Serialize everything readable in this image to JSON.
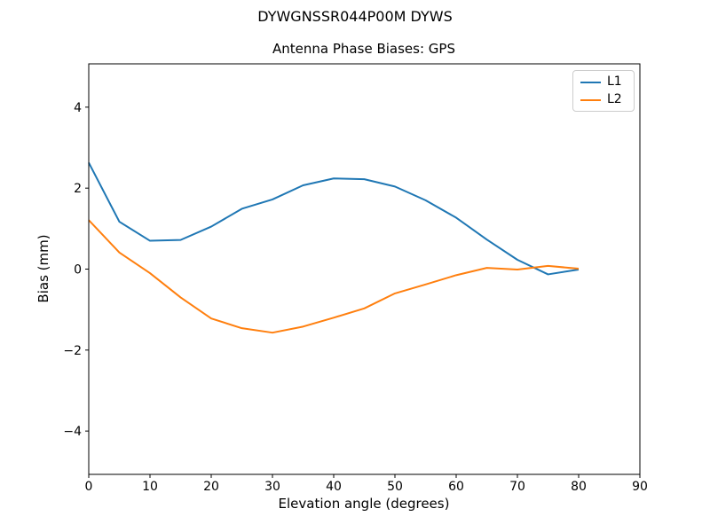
{
  "figure": {
    "suptitle": "DYWGNSSR044P00M DYWS"
  },
  "chart_data": {
    "type": "line",
    "title": "Antenna Phase Biases: GPS",
    "xlabel": "Elevation angle (degrees)",
    "ylabel": "Bias (mm)",
    "xlim": [
      0,
      90
    ],
    "ylim": [
      -5.07,
      5.07
    ],
    "xticks": [
      0,
      10,
      20,
      30,
      40,
      50,
      60,
      70,
      80,
      90
    ],
    "yticks": [
      -4,
      -2,
      0,
      2,
      4
    ],
    "grid": false,
    "legend_position": "upper right",
    "x": [
      0,
      5,
      10,
      15,
      20,
      25,
      30,
      35,
      40,
      45,
      50,
      55,
      60,
      65,
      70,
      75,
      80
    ],
    "series": [
      {
        "name": "L1",
        "color": "#1f77b4",
        "values": [
          2.63,
          1.17,
          0.7,
          0.72,
          1.05,
          1.49,
          1.72,
          2.07,
          2.24,
          2.22,
          2.04,
          1.7,
          1.27,
          0.73,
          0.23,
          -0.13,
          -0.01
        ]
      },
      {
        "name": "L2",
        "color": "#ff7f0e",
        "values": [
          1.21,
          0.41,
          -0.1,
          -0.7,
          -1.22,
          -1.46,
          -1.57,
          -1.42,
          -1.2,
          -0.97,
          -0.6,
          -0.38,
          -0.15,
          0.03,
          -0.01,
          0.08,
          0.01
        ]
      }
    ]
  }
}
